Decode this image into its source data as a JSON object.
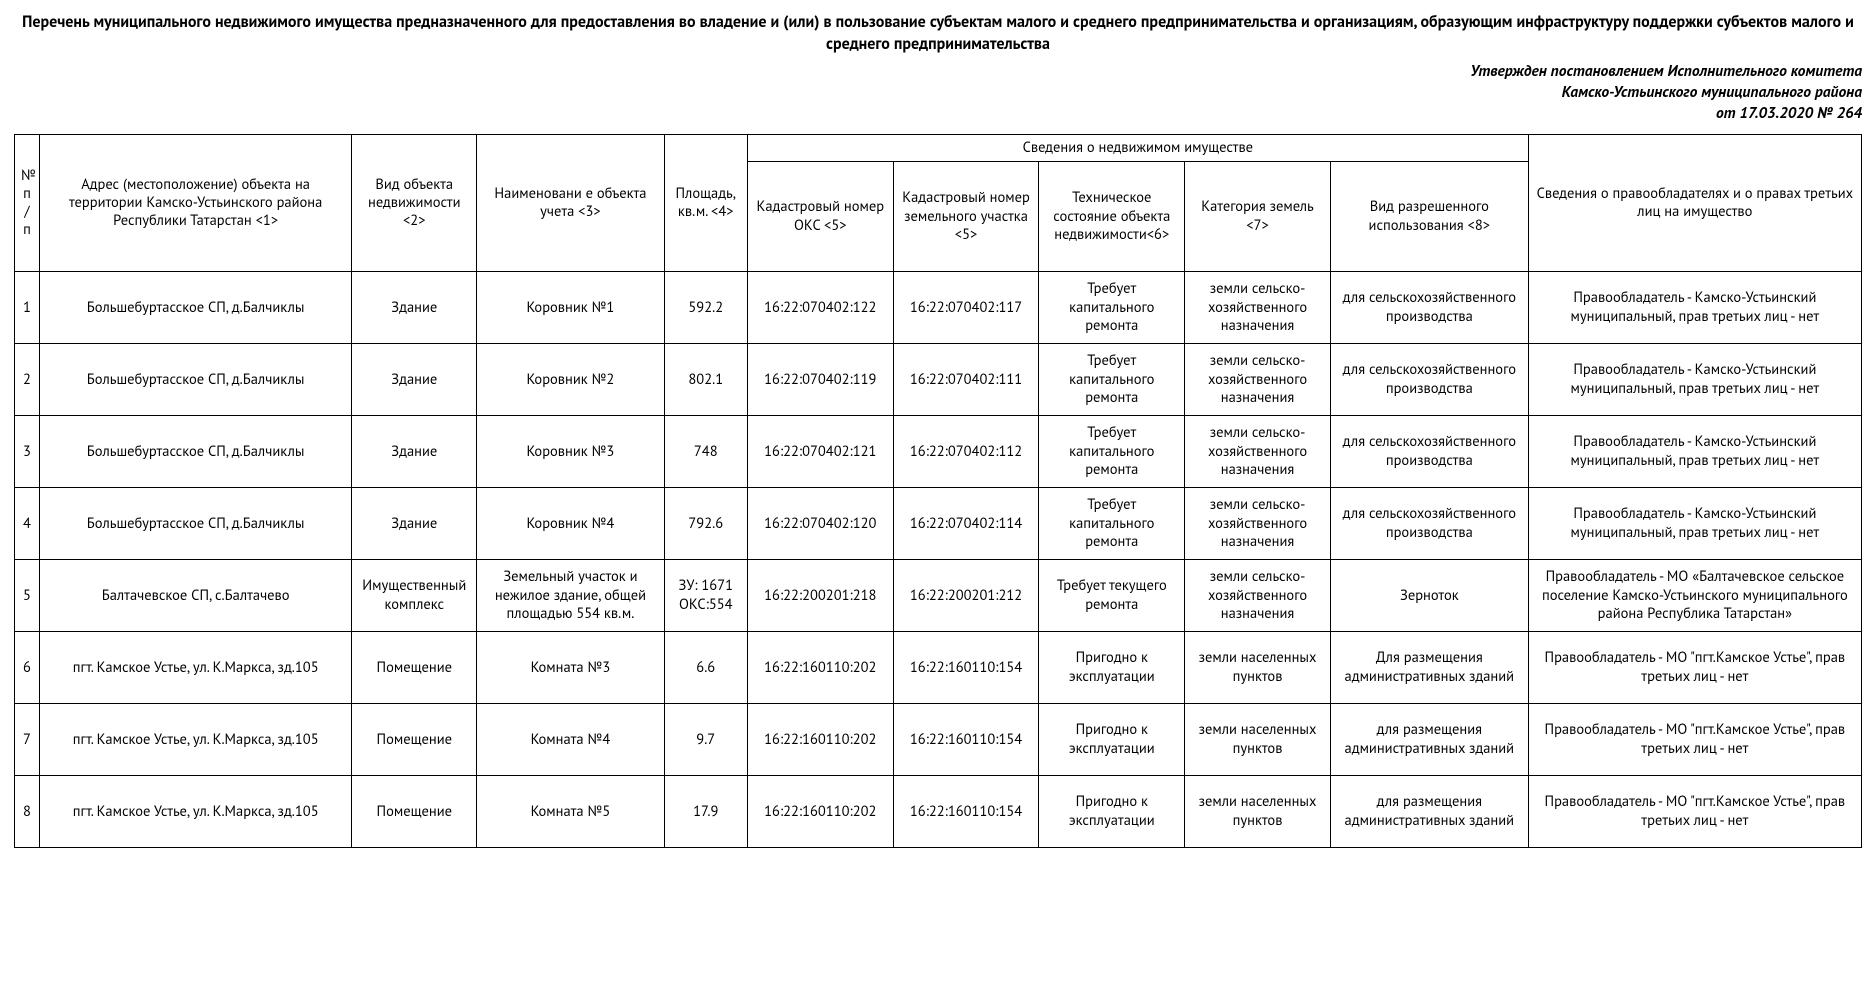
{
  "title": "Перечень муниципального недвижимого имущества предназначенного для предоставления во владение и (или) в пользование субъектам малого и среднего предпринимательства и организациям, образующим инфраструктуру поддержки субъектов малого и среднего предпринимательства",
  "approval_line1": "Утвержден постановлением Исполнительного комитета",
  "approval_line2": "Камско-Устьинского муниципального района",
  "approval_line3": "от 17.03.2020 № 264",
  "headers": {
    "num": "№ п/п",
    "address": "Адрес (местоположение) объекта на территории Камско-Устьинского района Республики Татарстан <1>",
    "object_type": "Вид объекта недвижимости <2>",
    "object_name": "Наименовани е объекта учета <3>",
    "area": "Площадь, кв.м. <4>",
    "property_info": "Сведения о недвижимом имуществе",
    "cad_oks": "Кадастровый номер ОКС <5>",
    "cad_land": "Кадастровый номер земельного участка <5>",
    "tech_state": "Техническое состояние объекта недвижимости<6>",
    "land_cat": "Категория земель <7>",
    "permitted_use": "Вид разрешенного использования <8>",
    "owner_info": "Сведения о правообладателях и о правах третьих лиц на имущество"
  },
  "rows": [
    {
      "num": "1",
      "address": "Большебуртасское СП, д.Балчиклы",
      "object_type": "Здание",
      "object_name": "Коровник №1",
      "area": "592.2",
      "cad_oks": "16:22:070402:122",
      "cad_land": "16:22:070402:117",
      "tech_state": "Требует капитального ремонта",
      "land_cat": "земли сельско-хозяйственного назначения",
      "permitted_use": "для сельскохозяйственного производства",
      "owner": "Правообладатель - Камско-Устьинский муниципальный, прав третьих лиц - нет"
    },
    {
      "num": "2",
      "address": "Большебуртасское СП, д.Балчиклы",
      "object_type": "Здание",
      "object_name": "Коровник №2",
      "area": "802.1",
      "cad_oks": "16:22:070402:119",
      "cad_land": "16:22:070402:111",
      "tech_state": "Требует капитального ремонта",
      "land_cat": "земли сельско-хозяйственного назначения",
      "permitted_use": "для сельскохозяйственного производства",
      "owner": "Правообладатель - Камско-Устьинский муниципальный, прав третьих лиц - нет"
    },
    {
      "num": "3",
      "address": "Большебуртасское СП, д.Балчиклы",
      "object_type": "Здание",
      "object_name": "Коровник №3",
      "area": "748",
      "cad_oks": "16:22:070402:121",
      "cad_land": "16:22:070402:112",
      "tech_state": "Требует капитального ремонта",
      "land_cat": "земли сельско-хозяйственного назначения",
      "permitted_use": "для сельскохозяйственного производства",
      "owner": "Правообладатель - Камско-Устьинский муниципальный, прав третьих лиц - нет"
    },
    {
      "num": "4",
      "address": "Большебуртасское СП, д.Балчиклы",
      "object_type": "Здание",
      "object_name": "Коровник №4",
      "area": "792.6",
      "cad_oks": "16:22:070402:120",
      "cad_land": "16:22:070402:114",
      "tech_state": "Требует капитального ремонта",
      "land_cat": "земли сельско-хозяйственного назначения",
      "permitted_use": "для сельскохозяйственного производства",
      "owner": "Правообладатель - Камско-Устьинский муниципальный, прав третьих лиц - нет"
    },
    {
      "num": "5",
      "address": "Балтачевское СП, с.Балтачево",
      "object_type": "Имущественный комплекс",
      "object_name": "Земельный участок и нежилое здание, общей площадью 554 кв.м.",
      "area": "ЗУ: 1671 ОКС:554",
      "cad_oks": "16:22:200201:218",
      "cad_land": "16:22:200201:212",
      "tech_state": "Требует текущего ремонта",
      "land_cat": "земли сельско-хозяйственного назначения",
      "permitted_use": "Зерноток",
      "owner": "Правообладатель - МО «Балтачевское сельское поселение Камско-Устьинского муниципального района Республика Татарстан»"
    },
    {
      "num": "6",
      "address": "пгт. Камское Устье, ул. К.Маркса, зд.105",
      "object_type": "Помещение",
      "object_name": "Комната №3",
      "area": "6.6",
      "cad_oks": "16:22:160110:202",
      "cad_land": "16:22:160110:154",
      "tech_state": "Пригодно к эксплуатации",
      "land_cat": "земли населенных пунктов",
      "permitted_use": "Для размещения административных зданий",
      "owner": "Правообладатель - МО \"пгт.Камское Устье\", прав третьих лиц - нет"
    },
    {
      "num": "7",
      "address": "пгт. Камское Устье, ул. К.Маркса, зд.105",
      "object_type": "Помещение",
      "object_name": "Комната №4",
      "area": "9.7",
      "cad_oks": "16:22:160110:202",
      "cad_land": "16:22:160110:154",
      "tech_state": "Пригодно к эксплуатации",
      "land_cat": "земли населенных пунктов",
      "permitted_use": "для размещения административных зданий",
      "owner": "Правообладатель - МО \"пгт.Камское Устье\", прав третьих лиц - нет"
    },
    {
      "num": "8",
      "address": "пгт. Камское Устье, ул. К.Маркса, зд.105",
      "object_type": "Помещение",
      "object_name": "Комната №5",
      "area": "17.9",
      "cad_oks": "16:22:160110:202",
      "cad_land": "16:22:160110:154",
      "tech_state": "Пригодно к эксплуатации",
      "land_cat": "земли населенных пунктов",
      "permitted_use": "для размещения административных зданий",
      "owner": "Правообладатель - МО \"пгт.Камское Устье\", прав третьих лиц - нет"
    }
  ]
}
